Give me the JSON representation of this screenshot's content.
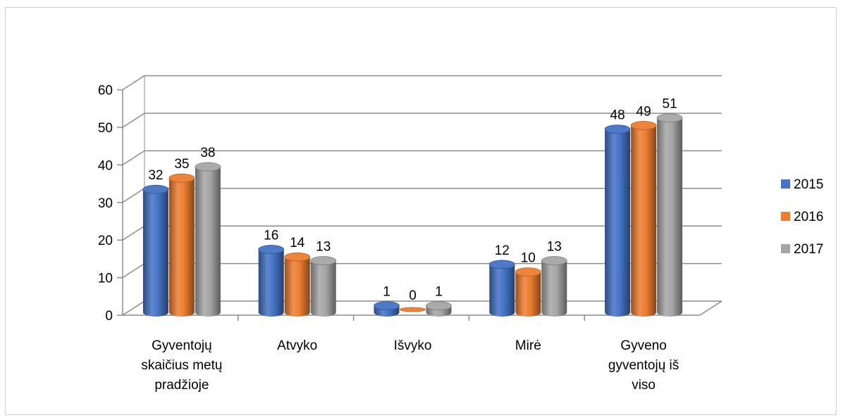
{
  "chart_data": {
    "type": "bar",
    "style": "3d-cylinder",
    "categories": [
      [
        "Gyventojų",
        "skaičius metų",
        "pradžioje"
      ],
      [
        "Atvyko"
      ],
      [
        "Išvyko"
      ],
      [
        "Mirė"
      ],
      [
        "Gyveno",
        "gyventojų iš",
        "viso"
      ]
    ],
    "series": [
      {
        "name": "2015",
        "color": "#4472c4",
        "values": [
          32,
          16,
          1,
          12,
          48
        ]
      },
      {
        "name": "2016",
        "color": "#ed7d31",
        "values": [
          35,
          14,
          0,
          10,
          49
        ]
      },
      {
        "name": "2017",
        "color": "#a5a5a5",
        "values": [
          38,
          13,
          1,
          13,
          51
        ]
      }
    ],
    "ylim": [
      0,
      60
    ],
    "yticks": [
      0,
      10,
      20,
      30,
      40,
      50,
      60
    ],
    "grid": true,
    "data_labels": true,
    "legend": "right"
  }
}
